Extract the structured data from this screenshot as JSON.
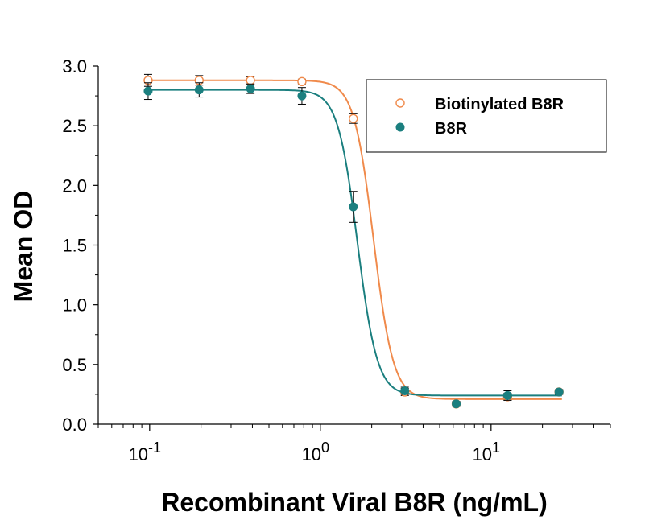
{
  "chart_data": {
    "type": "scatter",
    "xscale": "log",
    "xlim": [
      0.05,
      50
    ],
    "ylim": [
      0,
      3.0
    ],
    "xlabel": "Recombinant Viral B8R (ng/mL)",
    "ylabel": "Mean OD",
    "grid": false,
    "legend_position": "top-right",
    "y_ticks": [
      "0.0",
      "0.5",
      "1.0",
      "1.5",
      "2.0",
      "2.5",
      "3.0"
    ],
    "y_tick_values": [
      0,
      0.5,
      1.0,
      1.5,
      2.0,
      2.5,
      3.0
    ],
    "x_ticks": [
      {
        "value": 0.1,
        "base": "10",
        "exp": "-1"
      },
      {
        "value": 1,
        "base": "10",
        "exp": "0"
      },
      {
        "value": 10,
        "base": "10",
        "exp": "1"
      }
    ],
    "series": [
      {
        "name": "Biotinylated B8R",
        "color": "#f08a4b",
        "marker": "open-circle",
        "x": [
          0.098,
          0.195,
          0.39,
          0.78,
          1.56,
          3.125,
          6.25,
          12.5,
          25
        ],
        "y": [
          2.88,
          2.88,
          2.88,
          2.87,
          2.56,
          0.27,
          0.17,
          0.23,
          0.27
        ],
        "err": [
          0.05,
          0.04,
          0.03,
          0.02,
          0.04,
          0.03,
          0.02,
          0.03,
          0.02
        ],
        "fit": {
          "top": 2.88,
          "bottom": 0.21,
          "ec50": 2.05,
          "hill": 7.5
        }
      },
      {
        "name": "B8R",
        "color": "#1b7f7f",
        "marker": "filled-circle",
        "x": [
          0.098,
          0.195,
          0.39,
          0.78,
          1.56,
          3.125,
          6.25,
          12.5,
          25
        ],
        "y": [
          2.79,
          2.8,
          2.81,
          2.75,
          1.82,
          0.28,
          0.17,
          0.24,
          0.27
        ],
        "err": [
          0.07,
          0.06,
          0.04,
          0.07,
          0.13,
          0.03,
          0.02,
          0.04,
          0.02
        ],
        "fit": {
          "top": 2.8,
          "bottom": 0.24,
          "ec50": 1.65,
          "hill": 7.5
        }
      }
    ]
  }
}
